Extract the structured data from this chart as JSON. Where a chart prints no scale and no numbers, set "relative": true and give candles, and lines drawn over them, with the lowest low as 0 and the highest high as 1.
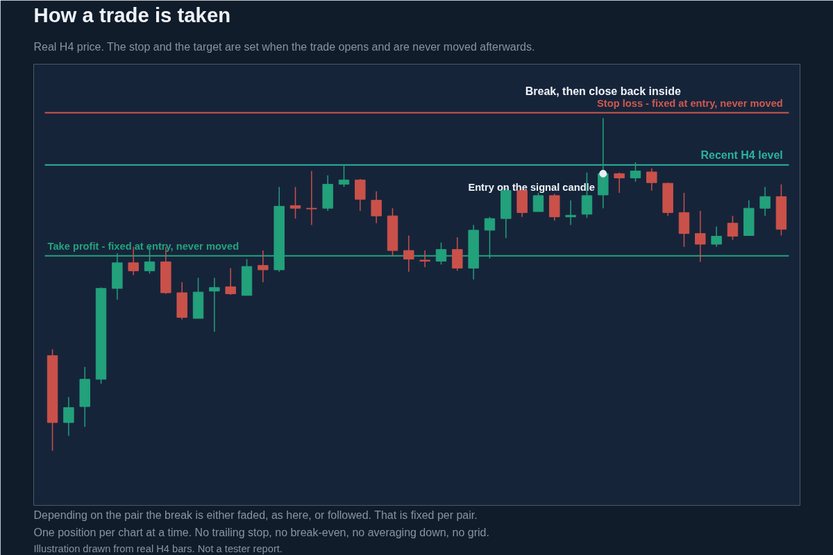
{
  "chart_data": {
    "type": "candlestick",
    "title": "How a trade is taken",
    "subtitle": "Real H4 price. The stop and the target are set when the trade opens and are never moved afterwards.",
    "relative": true,
    "categories": [
      null,
      null,
      null,
      null,
      null,
      null,
      null,
      null,
      null,
      null,
      null,
      null,
      null,
      null,
      null,
      null,
      null,
      null,
      null,
      null,
      null,
      null,
      null,
      null,
      null,
      null,
      null,
      null,
      null,
      null,
      null,
      null,
      null,
      null,
      null,
      null,
      null,
      null,
      null,
      null,
      null,
      null,
      null,
      null,
      null,
      null
    ],
    "ohlc": [
      [
        0.286,
        0.305,
        0,
        0.085
      ],
      [
        0.085,
        0.162,
        0.045,
        0.13
      ],
      [
        0.133,
        0.252,
        0.072,
        0.215
      ],
      [
        0.215,
        0.491,
        0.202,
        0.488
      ],
      [
        0.488,
        0.594,
        0.454,
        0.565
      ],
      [
        0.565,
        0.613,
        0.528,
        0.541
      ],
      [
        0.541,
        0.613,
        0.533,
        0.568
      ],
      [
        0.568,
        0.613,
        0.472,
        0.475
      ],
      [
        0.475,
        0.507,
        0.395,
        0.401
      ],
      [
        0.398,
        0.52,
        0.398,
        0.477
      ],
      [
        0.48,
        0.52,
        0.358,
        0.491
      ],
      [
        0.493,
        0.549,
        0.469,
        0.472
      ],
      [
        0.467,
        0.576,
        0.467,
        0.554
      ],
      [
        0.557,
        0.602,
        0.507,
        0.544
      ],
      [
        0.544,
        0.793,
        0.538,
        0.735
      ],
      [
        0.737,
        0.793,
        0.698,
        0.729
      ],
      [
        0.729,
        0.841,
        0.679,
        0.727
      ],
      [
        0.729,
        0.828,
        0.721,
        0.801
      ],
      [
        0.801,
        0.857,
        0.793,
        0.814
      ],
      [
        0.814,
        0.817,
        0.721,
        0.756
      ],
      [
        0.753,
        0.78,
        0.684,
        0.706
      ],
      [
        0.706,
        0.729,
        0.586,
        0.602
      ],
      [
        0.602,
        0.647,
        0.538,
        0.576
      ],
      [
        0.573,
        0.602,
        0.552,
        0.57
      ],
      [
        0.57,
        0.626,
        0.56,
        0.605
      ],
      [
        0.605,
        0.642,
        0.541,
        0.549
      ],
      [
        0.549,
        0.679,
        0.515,
        0.663
      ],
      [
        0.663,
        0.703,
        0.578,
        0.698
      ],
      [
        0.698,
        0.79,
        0.639,
        0.782
      ],
      [
        0.782,
        0.788,
        0.703,
        0.716
      ],
      [
        0.719,
        0.775,
        0.719,
        0.767
      ],
      [
        0.767,
        0.772,
        0.692,
        0.703
      ],
      [
        0.703,
        0.753,
        0.679,
        0.708
      ],
      [
        0.711,
        0.836,
        0.7,
        0.767
      ],
      [
        0.769,
        1,
        0.729,
        0.833
      ],
      [
        0.833,
        0.836,
        0.775,
        0.82
      ],
      [
        0.82,
        0.867,
        0.809,
        0.841
      ],
      [
        0.838,
        0.849,
        0.782,
        0.806
      ],
      [
        0.804,
        0.806,
        0.706,
        0.716
      ],
      [
        0.716,
        0.775,
        0.613,
        0.653
      ],
      [
        0.653,
        0.721,
        0.568,
        0.621
      ],
      [
        0.621,
        0.674,
        0.613,
        0.645
      ],
      [
        0.684,
        0.706,
        0.634,
        0.645
      ],
      [
        0.647,
        0.753,
        0.647,
        0.729
      ],
      [
        0.729,
        0.793,
        0.706,
        0.764
      ],
      [
        0.764,
        0.801,
        0.647,
        0.666
      ]
    ],
    "colors": [
      "#c9514a",
      "#22a17b",
      "#22a17b",
      "#22a17b",
      "#22a17b",
      "#c9514a",
      "#22a17b",
      "#c9514a",
      "#c9514a",
      "#22a17b",
      "#22a17b",
      "#c9514a",
      "#22a17b",
      "#c9514a",
      "#22a17b",
      "#c9514a",
      "#c9514a",
      "#22a17b",
      "#22a17b",
      "#c9514a",
      "#c9514a",
      "#c9514a",
      "#c9514a",
      "#c9514a",
      "#22a17b",
      "#c9514a",
      "#22a17b",
      "#22a17b",
      "#22a17b",
      "#c9514a",
      "#22a17b",
      "#c9514a",
      "#22a17b",
      "#22a17b",
      "#22a17b",
      "#c9514a",
      "#22a17b",
      "#c9514a",
      "#c9514a",
      "#c9514a",
      "#c9514a",
      "#22a17b",
      "#c9514a",
      "#22a17b",
      "#22a17b",
      "#c9514a"
    ],
    "series": [
      {
        "type": "scatter",
        "marker": "circle",
        "color": "#e8edf3",
        "values": [
          null,
          null,
          null,
          null,
          null,
          null,
          null,
          null,
          null,
          null,
          null,
          null,
          null,
          null,
          null,
          null,
          null,
          null,
          null,
          null,
          null,
          null,
          null,
          null,
          null,
          null,
          null,
          null,
          null,
          null,
          null,
          null,
          null,
          null,
          0.833,
          null,
          null,
          null,
          null,
          null,
          null,
          null,
          null,
          null,
          null,
          null
        ]
      }
    ],
    "ref_lines": [
      {
        "axis": "y",
        "value": 1.016,
        "label": "Stop loss - fixed at entry, never moved",
        "color": "#d0594f"
      },
      {
        "axis": "y",
        "value": 0.859,
        "label": "Recent H4 level",
        "color": "#2bb39b"
      },
      {
        "axis": "y",
        "value": 0.586,
        "label": "Take profit - fixed at entry, never moved",
        "color": "#23a37e"
      }
    ],
    "annotations": [
      {
        "text": "Break, then close back inside",
        "y": 1
      },
      "Entry on the signal candle",
      "Depending on the pair the break is either faded, as here, or followed. That is fixed per pair.",
      "One position per chart at a time. No trailing stop, no break-even, no averaging down, no grid.",
      "Illustration drawn from real H4 bars. Not a tester report."
    ]
  }
}
